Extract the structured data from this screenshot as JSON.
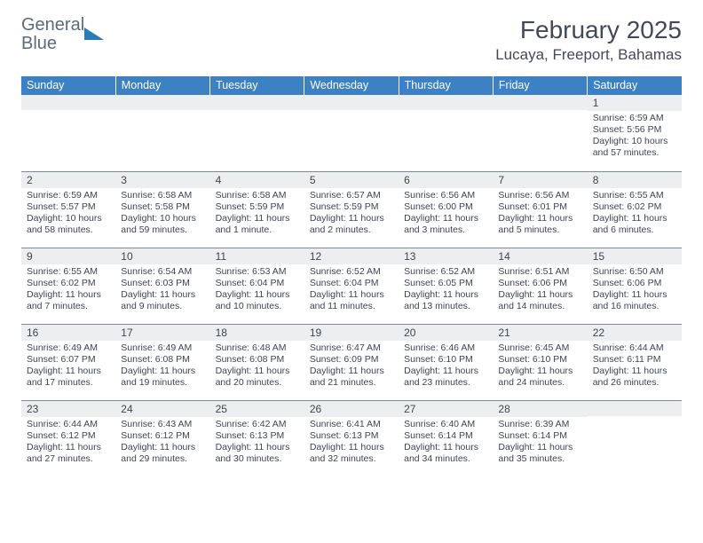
{
  "logo": {
    "word1": "General",
    "word2": "Blue"
  },
  "title": "February 2025",
  "location": "Lucaya, Freeport, Bahamas",
  "dayHeaders": [
    "Sunday",
    "Monday",
    "Tuesday",
    "Wednesday",
    "Thursday",
    "Friday",
    "Saturday"
  ],
  "colors": {
    "headerBlue": "#3b81c3",
    "dayNumBg": "#eceeef",
    "borderGray": "#7b8a9a",
    "textDark": "#3d4650",
    "logoGray": "#5a6b7b",
    "logoBlue": "#2a7ab9"
  },
  "weeks": [
    [
      {
        "n": "",
        "sr": "",
        "ss": "",
        "dl": ""
      },
      {
        "n": "",
        "sr": "",
        "ss": "",
        "dl": ""
      },
      {
        "n": "",
        "sr": "",
        "ss": "",
        "dl": ""
      },
      {
        "n": "",
        "sr": "",
        "ss": "",
        "dl": ""
      },
      {
        "n": "",
        "sr": "",
        "ss": "",
        "dl": ""
      },
      {
        "n": "",
        "sr": "",
        "ss": "",
        "dl": ""
      },
      {
        "n": "1",
        "sr": "6:59 AM",
        "ss": "5:56 PM",
        "dl": "10 hours and 57 minutes."
      }
    ],
    [
      {
        "n": "2",
        "sr": "6:59 AM",
        "ss": "5:57 PM",
        "dl": "10 hours and 58 minutes."
      },
      {
        "n": "3",
        "sr": "6:58 AM",
        "ss": "5:58 PM",
        "dl": "10 hours and 59 minutes."
      },
      {
        "n": "4",
        "sr": "6:58 AM",
        "ss": "5:59 PM",
        "dl": "11 hours and 1 minute."
      },
      {
        "n": "5",
        "sr": "6:57 AM",
        "ss": "5:59 PM",
        "dl": "11 hours and 2 minutes."
      },
      {
        "n": "6",
        "sr": "6:56 AM",
        "ss": "6:00 PM",
        "dl": "11 hours and 3 minutes."
      },
      {
        "n": "7",
        "sr": "6:56 AM",
        "ss": "6:01 PM",
        "dl": "11 hours and 5 minutes."
      },
      {
        "n": "8",
        "sr": "6:55 AM",
        "ss": "6:02 PM",
        "dl": "11 hours and 6 minutes."
      }
    ],
    [
      {
        "n": "9",
        "sr": "6:55 AM",
        "ss": "6:02 PM",
        "dl": "11 hours and 7 minutes."
      },
      {
        "n": "10",
        "sr": "6:54 AM",
        "ss": "6:03 PM",
        "dl": "11 hours and 9 minutes."
      },
      {
        "n": "11",
        "sr": "6:53 AM",
        "ss": "6:04 PM",
        "dl": "11 hours and 10 minutes."
      },
      {
        "n": "12",
        "sr": "6:52 AM",
        "ss": "6:04 PM",
        "dl": "11 hours and 11 minutes."
      },
      {
        "n": "13",
        "sr": "6:52 AM",
        "ss": "6:05 PM",
        "dl": "11 hours and 13 minutes."
      },
      {
        "n": "14",
        "sr": "6:51 AM",
        "ss": "6:06 PM",
        "dl": "11 hours and 14 minutes."
      },
      {
        "n": "15",
        "sr": "6:50 AM",
        "ss": "6:06 PM",
        "dl": "11 hours and 16 minutes."
      }
    ],
    [
      {
        "n": "16",
        "sr": "6:49 AM",
        "ss": "6:07 PM",
        "dl": "11 hours and 17 minutes."
      },
      {
        "n": "17",
        "sr": "6:49 AM",
        "ss": "6:08 PM",
        "dl": "11 hours and 19 minutes."
      },
      {
        "n": "18",
        "sr": "6:48 AM",
        "ss": "6:08 PM",
        "dl": "11 hours and 20 minutes."
      },
      {
        "n": "19",
        "sr": "6:47 AM",
        "ss": "6:09 PM",
        "dl": "11 hours and 21 minutes."
      },
      {
        "n": "20",
        "sr": "6:46 AM",
        "ss": "6:10 PM",
        "dl": "11 hours and 23 minutes."
      },
      {
        "n": "21",
        "sr": "6:45 AM",
        "ss": "6:10 PM",
        "dl": "11 hours and 24 minutes."
      },
      {
        "n": "22",
        "sr": "6:44 AM",
        "ss": "6:11 PM",
        "dl": "11 hours and 26 minutes."
      }
    ],
    [
      {
        "n": "23",
        "sr": "6:44 AM",
        "ss": "6:12 PM",
        "dl": "11 hours and 27 minutes."
      },
      {
        "n": "24",
        "sr": "6:43 AM",
        "ss": "6:12 PM",
        "dl": "11 hours and 29 minutes."
      },
      {
        "n": "25",
        "sr": "6:42 AM",
        "ss": "6:13 PM",
        "dl": "11 hours and 30 minutes."
      },
      {
        "n": "26",
        "sr": "6:41 AM",
        "ss": "6:13 PM",
        "dl": "11 hours and 32 minutes."
      },
      {
        "n": "27",
        "sr": "6:40 AM",
        "ss": "6:14 PM",
        "dl": "11 hours and 34 minutes."
      },
      {
        "n": "28",
        "sr": "6:39 AM",
        "ss": "6:14 PM",
        "dl": "11 hours and 35 minutes."
      },
      {
        "n": "",
        "sr": "",
        "ss": "",
        "dl": ""
      }
    ]
  ],
  "labels": {
    "sunrise": "Sunrise:",
    "sunset": "Sunset:",
    "daylight": "Daylight:"
  }
}
